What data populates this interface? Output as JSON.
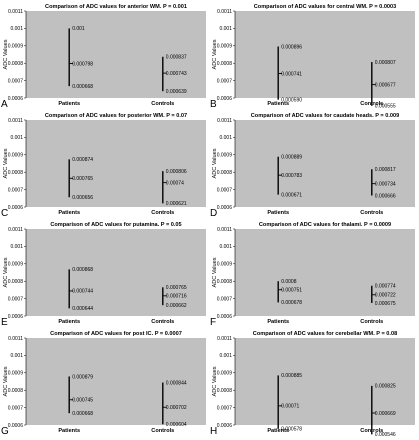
{
  "chart_data": [
    {
      "type": "range",
      "panel_letter": "A",
      "title": "Comparison of ADC values for anterior WM. P = 0.001",
      "ylabel": "ADC Values",
      "ylim": [
        0.0006,
        0.0011
      ],
      "yticks": [
        "0.0011",
        "0.001",
        "0.0009",
        "0.0008",
        "0.0007",
        "0.0006"
      ],
      "categories": [
        "Patients",
        "Controls"
      ],
      "groups": [
        {
          "name": "Patients",
          "max": 0.001,
          "mean": 0.000798,
          "min": 0.000668,
          "labels": {
            "max": "0.001",
            "mean": "0.000798",
            "min": "0.000668"
          }
        },
        {
          "name": "Controls",
          "max": 0.000837,
          "mean": 0.000743,
          "min": 0.000639,
          "labels": {
            "max": "0.000837",
            "mean": "0.000743",
            "min": "0.000639"
          }
        }
      ]
    },
    {
      "type": "range",
      "panel_letter": "B",
      "title": "Comparison of ADC values for central WM. P = 0.0003",
      "ylabel": "ADC Values",
      "ylim": [
        0.0006,
        0.0011
      ],
      "yticks": [
        "0.0011",
        "0.001",
        "0.0009",
        "0.0008",
        "0.0007",
        "0.0006"
      ],
      "categories": [
        "Patients",
        "Controls"
      ],
      "groups": [
        {
          "name": "Patients",
          "max": 0.000896,
          "mean": 0.000741,
          "min": 0.00059,
          "labels": {
            "max": "0.000896",
            "mean": "0.000741",
            "min": "0.000590"
          }
        },
        {
          "name": "Controls",
          "max": 0.000807,
          "mean": 0.000677,
          "min": 0.000555,
          "labels": {
            "max": "0.000807",
            "mean": "0.000677",
            "min": "0.000555"
          }
        }
      ]
    },
    {
      "type": "range",
      "panel_letter": "C",
      "title": "Comparison of ADC values for posterior WM. P = 0.07",
      "ylabel": "ADC Values",
      "ylim": [
        0.0006,
        0.0011
      ],
      "yticks": [
        "0.0011",
        "0.001",
        "0.0009",
        "0.0008",
        "0.0007",
        "0.0006"
      ],
      "categories": [
        "Patients",
        "Controls"
      ],
      "groups": [
        {
          "name": "Patients",
          "max": 0.000874,
          "mean": 0.000765,
          "min": 0.000656,
          "labels": {
            "max": "0.000874",
            "mean": "0.000765",
            "min": "0.000656"
          }
        },
        {
          "name": "Controls",
          "max": 0.000806,
          "mean": 0.00074,
          "min": 0.000621,
          "labels": {
            "max": "0.000806",
            "mean": "0.00074",
            "min": "0.000621"
          }
        }
      ]
    },
    {
      "type": "range",
      "panel_letter": "D",
      "title": "Comparison of ADC values for caudate heads. P = 0.009",
      "ylabel": "ADC Values",
      "ylim": [
        0.0006,
        0.0011
      ],
      "yticks": [
        "0.0011",
        "0.001",
        "0.0009",
        "0.0008",
        "0.0007",
        "0.0006"
      ],
      "categories": [
        "Patients",
        "Controls"
      ],
      "groups": [
        {
          "name": "Patients",
          "max": 0.000889,
          "mean": 0.000783,
          "min": 0.000671,
          "labels": {
            "max": "0.000889",
            "mean": "0.000783",
            "min": "0.000671"
          }
        },
        {
          "name": "Controls",
          "max": 0.000817,
          "mean": 0.000734,
          "min": 0.000666,
          "labels": {
            "max": "0.000817",
            "mean": "0.000734",
            "min": "0.000666"
          }
        }
      ]
    },
    {
      "type": "range",
      "panel_letter": "E",
      "title": "Comparison of ADC values for putamina. P = 0.05",
      "ylabel": "ADC Values",
      "ylim": [
        0.0006,
        0.0011
      ],
      "yticks": [
        "0.0011",
        "0.001",
        "0.0009",
        "0.0008",
        "0.0007",
        "0.0006"
      ],
      "categories": [
        "Patients",
        "Controls"
      ],
      "groups": [
        {
          "name": "Patients",
          "max": 0.000868,
          "mean": 0.000744,
          "min": 0.000644,
          "labels": {
            "max": "0.000868",
            "mean": "0.000744",
            "min": "0.000644"
          }
        },
        {
          "name": "Controls",
          "max": 0.000765,
          "mean": 0.000716,
          "min": 0.000662,
          "labels": {
            "max": "0.000765",
            "mean": "0.000716",
            "min": "0.000662"
          }
        }
      ]
    },
    {
      "type": "range",
      "panel_letter": "F",
      "title": "Comparison of ADC values for thalami. P = 0.0009",
      "ylabel": "ADC Values",
      "ylim": [
        0.0006,
        0.0011
      ],
      "yticks": [
        "0.0011",
        "0.001",
        "0.0009",
        "0.0008",
        "0.0007",
        "0.0006"
      ],
      "categories": [
        "Patients",
        "Controls"
      ],
      "groups": [
        {
          "name": "Patients",
          "max": 0.0008,
          "mean": 0.000751,
          "min": 0.000678,
          "labels": {
            "max": "0.0008",
            "mean": "0.000751",
            "min": "0.000678"
          }
        },
        {
          "name": "Controls",
          "max": 0.000774,
          "mean": 0.000722,
          "min": 0.000675,
          "labels": {
            "max": "0.000774",
            "mean": "0.000722",
            "min": "0.000675"
          }
        }
      ]
    },
    {
      "type": "range",
      "panel_letter": "G",
      "title": "Comparison of ADC values for post IC. P = 0.0007",
      "ylabel": "ADC Values",
      "ylim": [
        0.0006,
        0.0011
      ],
      "yticks": [
        "0.0011",
        "0.001",
        "0.0009",
        "0.0008",
        "0.0007",
        "0.0006"
      ],
      "categories": [
        "Patients",
        "Controls"
      ],
      "groups": [
        {
          "name": "Patients",
          "max": 0.000879,
          "mean": 0.000745,
          "min": 0.000668,
          "labels": {
            "max": "0.000879",
            "mean": "0.000745",
            "min": "0.000668"
          }
        },
        {
          "name": "Controls",
          "max": 0.000844,
          "mean": 0.000702,
          "min": 0.000604,
          "labels": {
            "max": "0.000844",
            "mean": "0.000702",
            "min": "0.000604"
          }
        }
      ]
    },
    {
      "type": "range",
      "panel_letter": "H",
      "title": "Comparison of ADC values for cerebellar WM. P = 0.08",
      "ylabel": "ADC Values",
      "ylim": [
        0.0006,
        0.0011
      ],
      "yticks": [
        "0.0011",
        "0.001",
        "0.0009",
        "0.0008",
        "0.0007",
        "0.0006"
      ],
      "categories": [
        "Patients",
        "Controls"
      ],
      "groups": [
        {
          "name": "Patients",
          "max": 0.000885,
          "mean": 0.00071,
          "min": 0.000578,
          "labels": {
            "max": "0.000885",
            "mean": "0.00071",
            "min": "0.000578"
          }
        },
        {
          "name": "Controls",
          "max": 0.000825,
          "mean": 0.000669,
          "min": 0.000546,
          "labels": {
            "max": "0.000825",
            "mean": "0.000669",
            "min": "0.000546"
          }
        }
      ]
    }
  ],
  "colors": {
    "plot_background": "#c0c0c0",
    "marks": "#000000",
    "text": "#000000"
  }
}
